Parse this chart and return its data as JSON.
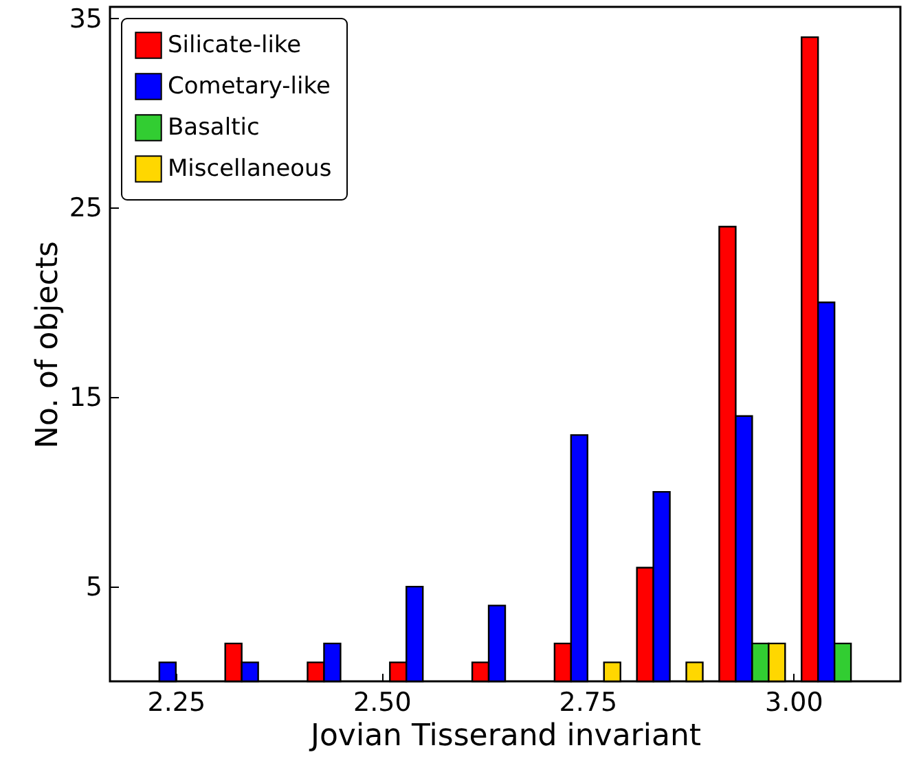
{
  "chart_data": {
    "type": "histogram",
    "xlabel": "Jovian Tisserand invariant",
    "ylabel": "No. of objects",
    "bins": [
      2.2,
      2.3,
      2.4,
      2.5,
      2.6,
      2.7,
      2.8,
      2.9,
      3.0,
      3.1
    ],
    "series": [
      {
        "name": "Silicate-like",
        "color": "#ff0000",
        "values": [
          0,
          2,
          1,
          1,
          1,
          2,
          6,
          24,
          34
        ]
      },
      {
        "name": "Cometary-like",
        "color": "#0000ff",
        "values": [
          1,
          1,
          2,
          5,
          4,
          13,
          10,
          14,
          20
        ]
      },
      {
        "name": "Basaltic",
        "color": "#32cd32",
        "values": [
          0,
          0,
          0,
          0,
          0,
          0,
          0,
          2,
          2
        ]
      },
      {
        "name": "Miscellaneous",
        "color": "#ffd700",
        "values": [
          0,
          0,
          0,
          0,
          0,
          1,
          1,
          2,
          0
        ]
      }
    ],
    "xlim": [
      2.17,
      3.13
    ],
    "ylim": [
      0,
      35.6
    ],
    "xticks": [
      2.25,
      {
        "value": 2.5,
        "label": "2.50"
      },
      2.75,
      {
        "value": 3.0,
        "label": "3.00"
      }
    ],
    "yticks": [
      5,
      15,
      25,
      35
    ],
    "legend": "top left",
    "grid": false
  }
}
